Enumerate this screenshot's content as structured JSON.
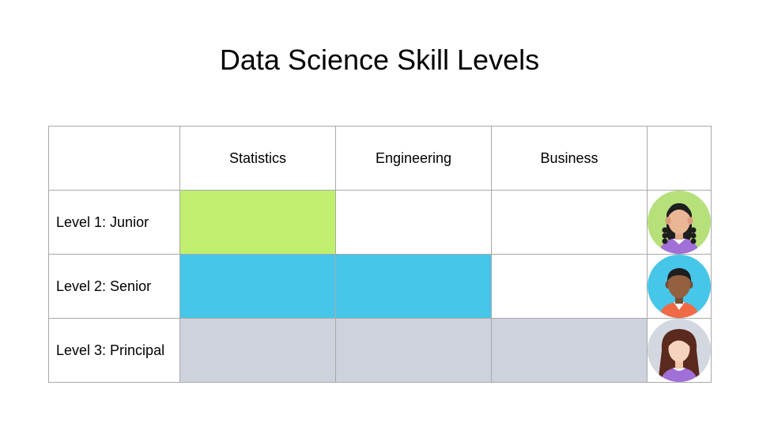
{
  "title": "Data Science Skill Levels",
  "columns": [
    "",
    "Statistics",
    "Engineering",
    "Business",
    ""
  ],
  "colors": {
    "level1": "#c0ef6e",
    "level2": "#46c6e8",
    "level3": "#cdd2dc",
    "empty": "#ffffff"
  },
  "rows": [
    {
      "label": "Level 1: Junior",
      "filled": [
        true,
        false,
        false
      ],
      "color_key": "level1",
      "avatar": "junior-avatar-icon"
    },
    {
      "label": "Level 2: Senior",
      "filled": [
        true,
        true,
        false
      ],
      "color_key": "level2",
      "avatar": "senior-avatar-icon"
    },
    {
      "label": "Level 3: Principal",
      "filled": [
        true,
        true,
        true
      ],
      "color_key": "level3",
      "avatar": "principal-avatar-icon"
    }
  ]
}
